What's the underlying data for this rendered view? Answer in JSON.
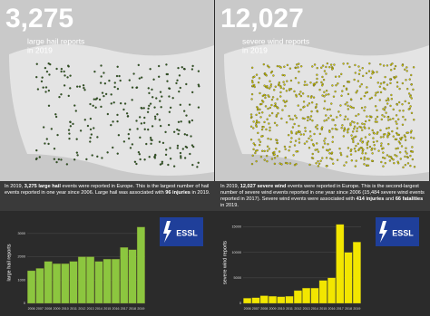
{
  "maps": [
    {
      "number": "3,275",
      "caption": [
        "large hail reports",
        "in 2019"
      ],
      "dot_color": "#2f5e1a"
    },
    {
      "number": "12,027",
      "caption": [
        "severe wind reports",
        "in 2019"
      ],
      "dot_color": "#d8d000"
    }
  ],
  "paragraphs": [
    [
      "In 2019, ",
      "3,275 large hail",
      " events were reported in Europe. This is the largest number of hail events reported in one year since 2006. Large hail was associated with ",
      "96 injuries",
      " in 2019."
    ],
    [
      "In 2019, ",
      "12,027 severe wind",
      " events were reported in Europe. This is the second-largest number of severe wind events reported in one year since 2006 (15,484 severe wind events reported in 2017). Severe wind events were associated with ",
      "414 injuries",
      " and ",
      "66 fatalities",
      " in 2019."
    ]
  ],
  "logo": "ESSL",
  "chart_data": [
    {
      "type": "bar",
      "ylabel": "large hail reports",
      "color": "#8cc63f",
      "categories": [
        "2006",
        "2007",
        "2008",
        "2009",
        "2010",
        "2011",
        "2012",
        "2013",
        "2014",
        "2015",
        "2016",
        "2017",
        "2018",
        "2019"
      ],
      "values": [
        1400,
        1500,
        1800,
        1700,
        1700,
        1800,
        2000,
        2000,
        1800,
        1900,
        1900,
        2400,
        2300,
        3275
      ],
      "ylim": [
        0,
        3500
      ],
      "yticks": [
        0,
        1000,
        2000,
        3000
      ]
    },
    {
      "type": "bar",
      "ylabel": "severe wind reports",
      "color": "#f2e600",
      "categories": [
        "2006",
        "2007",
        "2008",
        "2009",
        "2010",
        "2011",
        "2012",
        "2013",
        "2014",
        "2015",
        "2016",
        "2017",
        "2018",
        "2019"
      ],
      "values": [
        1000,
        1100,
        1500,
        1400,
        1300,
        1400,
        2500,
        3000,
        3000,
        4500,
        5000,
        15484,
        10000,
        12027
      ],
      "ylim": [
        0,
        16000
      ],
      "yticks": [
        0,
        5000,
        10000,
        15000
      ]
    }
  ]
}
